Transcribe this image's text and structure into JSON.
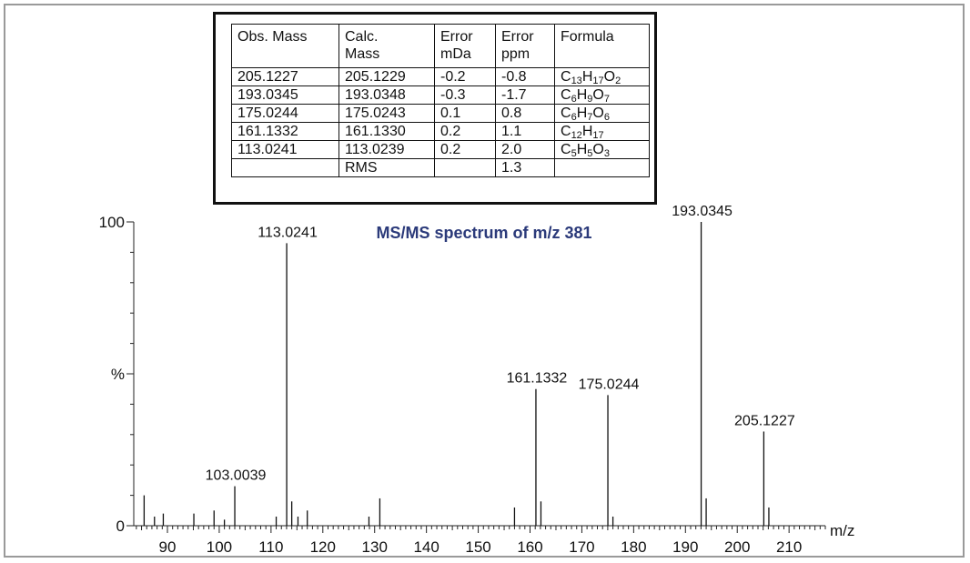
{
  "table": {
    "headers": [
      [
        "Obs. Mass"
      ],
      [
        "Calc.",
        "Mass"
      ],
      [
        "Error",
        "mDa"
      ],
      [
        "Error",
        "ppm"
      ],
      [
        "Formula"
      ]
    ],
    "rows": [
      {
        "obs": "205.1227",
        "calc": "205.1229",
        "mda": "-0.2",
        "ppm": "-0.8",
        "formula": [
          [
            "C",
            "13"
          ],
          [
            "H",
            "17"
          ],
          [
            "O",
            "2"
          ]
        ]
      },
      {
        "obs": "193.0345",
        "calc": "193.0348",
        "mda": "-0.3",
        "ppm": "-1.7",
        "formula": [
          [
            "C",
            "6"
          ],
          [
            "H",
            "9"
          ],
          [
            "O",
            "7"
          ]
        ]
      },
      {
        "obs": "175.0244",
        "calc": "175.0243",
        "mda": "0.1",
        "ppm": "0.8",
        "formula": [
          [
            "C",
            "6"
          ],
          [
            "H",
            "7"
          ],
          [
            "O",
            "6"
          ]
        ]
      },
      {
        "obs": "161.1332",
        "calc": "161.1330",
        "mda": "0.2",
        "ppm": "1.1",
        "formula": [
          [
            "C",
            "12"
          ],
          [
            "H",
            "17"
          ]
        ]
      },
      {
        "obs": "113.0241",
        "calc": "113.0239",
        "mda": "0.2",
        "ppm": "2.0",
        "formula": [
          [
            "C",
            "5"
          ],
          [
            "H",
            "5"
          ],
          [
            "O",
            "3"
          ]
        ]
      },
      {
        "obs": "",
        "calc": "RMS",
        "mda": "",
        "ppm": "1.3",
        "formula": []
      }
    ]
  },
  "chart_data": {
    "type": "bar",
    "title": "MS/MS spectrum of m/z 381",
    "xlabel": "m/z",
    "ylabel": "%",
    "xlim": [
      83.5,
      217
    ],
    "ylim": [
      0,
      100
    ],
    "x_ticks": [
      90,
      100,
      110,
      120,
      130,
      140,
      150,
      160,
      170,
      180,
      190,
      200,
      210
    ],
    "y_tick_labels": [
      {
        "value": 0,
        "label": "0"
      },
      {
        "value": 50,
        "label": "%"
      },
      {
        "value": 100,
        "label": "100"
      }
    ],
    "peaks": [
      {
        "mz": 85.5,
        "intensity": 10
      },
      {
        "mz": 87.5,
        "intensity": 3
      },
      {
        "mz": 89.2,
        "intensity": 4
      },
      {
        "mz": 95.1,
        "intensity": 4
      },
      {
        "mz": 99.0,
        "intensity": 5
      },
      {
        "mz": 101.0,
        "intensity": 2
      },
      {
        "mz": 103.0039,
        "intensity": 13,
        "label": "103.0039"
      },
      {
        "mz": 111.0,
        "intensity": 3
      },
      {
        "mz": 113.0241,
        "intensity": 93,
        "label": "113.0241"
      },
      {
        "mz": 114.0,
        "intensity": 8
      },
      {
        "mz": 115.2,
        "intensity": 3
      },
      {
        "mz": 117.0,
        "intensity": 5
      },
      {
        "mz": 128.9,
        "intensity": 3
      },
      {
        "mz": 131.0,
        "intensity": 9
      },
      {
        "mz": 157.0,
        "intensity": 6
      },
      {
        "mz": 161.1332,
        "intensity": 45,
        "label": "161.1332"
      },
      {
        "mz": 162.1,
        "intensity": 8
      },
      {
        "mz": 175.0244,
        "intensity": 43,
        "label": "175.0244"
      },
      {
        "mz": 176.0,
        "intensity": 3
      },
      {
        "mz": 193.0345,
        "intensity": 100,
        "label": "193.0345"
      },
      {
        "mz": 194.0,
        "intensity": 9
      },
      {
        "mz": 205.1227,
        "intensity": 31,
        "label": "205.1227"
      },
      {
        "mz": 206.1,
        "intensity": 6
      }
    ]
  }
}
